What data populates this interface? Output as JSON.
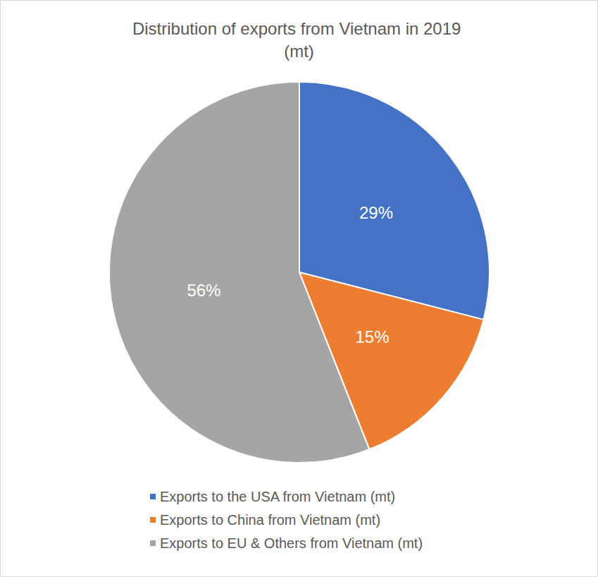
{
  "chart_data": {
    "type": "pie",
    "title": "Distribution of exports from Vietnam in 2019 (mt)",
    "categories": [
      "Exports to the USA from Vietnam (mt)",
      "Exports to China from Vietnam (mt)",
      "Exports to EU & Others from Vietnam (mt)"
    ],
    "values": [
      29,
      15,
      56
    ],
    "value_labels": [
      "29%",
      "15%",
      "56%"
    ],
    "colors": [
      "#4472c4",
      "#ed7d31",
      "#a5a5a5"
    ],
    "data_labels": true,
    "legend": "bottom"
  }
}
